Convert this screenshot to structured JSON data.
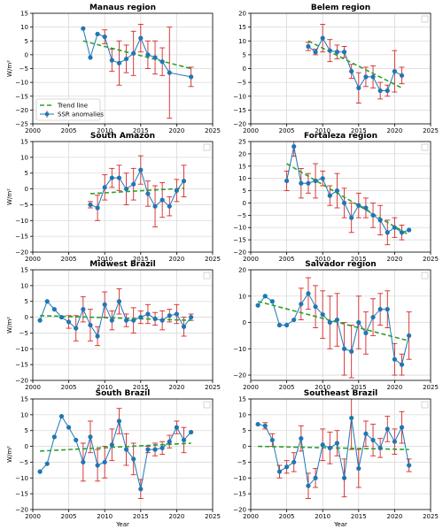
{
  "figure": {
    "series_names": {
      "trend": "Trend line",
      "ssr": "SSR anomalies"
    },
    "colors": {
      "ssr_line": "#1f77b4",
      "error_bar": "#d62728",
      "trend": "#2ca02c",
      "grid": "#d9d9d9",
      "frame": "#000000"
    },
    "xlabel": "Year",
    "ylabel": "W/m²"
  },
  "chart_data": [
    {
      "type": "line",
      "title": "Manaus region",
      "xlim": [
        2000,
        2025
      ],
      "ylim": [
        -25,
        15
      ],
      "xticks": [
        2000,
        2005,
        2010,
        2015,
        2020,
        2025
      ],
      "yticks": [
        -25,
        -20,
        -15,
        -10,
        -5,
        0,
        5,
        10,
        15
      ],
      "xlabel": "",
      "ylabel": "W/m²",
      "legend": "lower-left",
      "series": [
        {
          "name": "SSR anomalies",
          "x": [
            2007,
            2008,
            2009,
            2010,
            2011,
            2012,
            2013,
            2014,
            2015,
            2016,
            2017,
            2018,
            2019,
            2022
          ],
          "y": [
            9.5,
            -1,
            7.5,
            6.5,
            -2,
            -3,
            -1.5,
            0.5,
            6,
            0,
            -1,
            -2.5,
            -6.5,
            -8
          ],
          "err": [
            0,
            0,
            0,
            2.5,
            4,
            8,
            5,
            8,
            5,
            5,
            6,
            5,
            16.5,
            3.5
          ]
        }
      ],
      "trend": {
        "x": [
          2007,
          2022
        ],
        "y": [
          5,
          -5
        ]
      }
    },
    {
      "type": "line",
      "title": "Belem region",
      "xlim": [
        2000,
        2025
      ],
      "ylim": [
        -20,
        20
      ],
      "xticks": [
        2000,
        2005,
        2010,
        2015,
        2020,
        2025
      ],
      "yticks": [
        -20,
        -15,
        -10,
        -5,
        0,
        5,
        10,
        15,
        20
      ],
      "xlabel": "",
      "ylabel": "",
      "legend": "top-right-empty",
      "series": [
        {
          "name": "SSR anomalies",
          "x": [
            2008,
            2009,
            2010,
            2011,
            2012,
            2013,
            2014,
            2015,
            2016,
            2017,
            2018,
            2019,
            2020,
            2021
          ],
          "y": [
            8,
            6,
            11,
            6.5,
            6,
            6,
            -1,
            -7,
            -3,
            -3,
            -8,
            -8,
            -1,
            -2.5
          ],
          "err": [
            1.5,
            1,
            5,
            4,
            2.5,
            2,
            2.5,
            5.5,
            3.5,
            4,
            3,
            2,
            7.5,
            3
          ]
        }
      ],
      "trend": {
        "x": [
          2008,
          2021
        ],
        "y": [
          10,
          -7
        ]
      }
    },
    {
      "type": "line",
      "title": "South Amazon",
      "xlim": [
        2000,
        2025
      ],
      "ylim": [
        -20,
        15
      ],
      "xticks": [
        2000,
        2005,
        2010,
        2015,
        2020,
        2025
      ],
      "yticks": [
        -20,
        -15,
        -10,
        -5,
        0,
        5,
        10,
        15
      ],
      "xlabel": "",
      "ylabel": "W/m²",
      "legend": "top-right-empty",
      "series": [
        {
          "name": "SSR anomalies",
          "x": [
            2008,
            2009,
            2010,
            2011,
            2012,
            2013,
            2014,
            2015,
            2016,
            2017,
            2018,
            2019,
            2020,
            2021
          ],
          "y": [
            -5,
            -6,
            0.5,
            3.5,
            3.5,
            0,
            1.5,
            6,
            -1.5,
            -5.5,
            -3.5,
            -5.5,
            -0.5,
            2.5
          ],
          "err": [
            1,
            4,
            4,
            3,
            4,
            5,
            5,
            4.5,
            4,
            6.5,
            5.5,
            3,
            3.5,
            5
          ]
        }
      ],
      "trend": {
        "x": [
          2008,
          2021
        ],
        "y": [
          -1.5,
          0.2
        ]
      }
    },
    {
      "type": "line",
      "title": "Fortaleza region",
      "xlim": [
        2000,
        2025
      ],
      "ylim": [
        -20,
        25
      ],
      "xticks": [
        2000,
        2005,
        2010,
        2015,
        2020,
        2025
      ],
      "yticks": [
        -20,
        -15,
        -10,
        -5,
        0,
        5,
        10,
        15,
        20,
        25
      ],
      "xlabel": "",
      "ylabel": "",
      "legend": "top-right-empty",
      "series": [
        {
          "name": "SSR anomalies",
          "x": [
            2005,
            2006,
            2007,
            2008,
            2009,
            2010,
            2011,
            2012,
            2013,
            2014,
            2015,
            2016,
            2017,
            2018,
            2019,
            2020,
            2021,
            2022
          ],
          "y": [
            9,
            23,
            8,
            8,
            9,
            10,
            3,
            5,
            0,
            -6,
            -1,
            -2,
            -5,
            -7,
            -12,
            -10,
            -12,
            -11
          ],
          "err": [
            4,
            4,
            6,
            4,
            7,
            3,
            4,
            7,
            6,
            6,
            5,
            4,
            5,
            6,
            5,
            4,
            3,
            0
          ]
        }
      ],
      "trend": {
        "x": [
          2005,
          2022
        ],
        "y": [
          16,
          -13
        ]
      }
    },
    {
      "type": "line",
      "title": "Midwest Brazil",
      "xlim": [
        2000,
        2025
      ],
      "ylim": [
        -20,
        15
      ],
      "xticks": [
        2000,
        2005,
        2010,
        2015,
        2020,
        2025
      ],
      "yticks": [
        -20,
        -15,
        -10,
        -5,
        0,
        5,
        10,
        15
      ],
      "xlabel": "",
      "ylabel": "W/m²",
      "legend": "top-right-empty",
      "series": [
        {
          "name": "SSR anomalies",
          "x": [
            2001,
            2002,
            2003,
            2004,
            2005,
            2006,
            2007,
            2008,
            2009,
            2010,
            2011,
            2012,
            2013,
            2014,
            2015,
            2016,
            2017,
            2018,
            2019,
            2020,
            2021,
            2022
          ],
          "y": [
            -1,
            5,
            2.5,
            0,
            -1.5,
            -3.5,
            2.5,
            -2.5,
            -6,
            4,
            -1,
            5,
            -1,
            -1,
            0,
            1,
            -0.5,
            -1,
            0.5,
            1,
            -3,
            0
          ],
          "err": [
            0,
            0,
            0,
            0,
            2,
            4,
            4,
            5,
            3,
            4,
            3,
            4,
            2,
            4,
            2,
            3,
            2,
            3,
            2,
            3,
            3,
            1
          ]
        }
      ],
      "trend": {
        "x": [
          2001,
          2022
        ],
        "y": [
          0.5,
          -1
        ]
      }
    },
    {
      "type": "line",
      "title": "Salvador region",
      "xlim": [
        2000,
        2025
      ],
      "ylim": [
        -22,
        20
      ],
      "xticks": [
        2000,
        2005,
        2010,
        2015,
        2020,
        2025
      ],
      "yticks": [
        -20,
        -10,
        0,
        10,
        20
      ],
      "xlabel": "",
      "ylabel": "",
      "legend": "top-right-empty",
      "series": [
        {
          "name": "SSR anomalies",
          "x": [
            2001,
            2002,
            2003,
            2004,
            2005,
            2006,
            2007,
            2008,
            2009,
            2010,
            2011,
            2012,
            2013,
            2014,
            2015,
            2016,
            2017,
            2018,
            2019,
            2020,
            2021,
            2022
          ],
          "y": [
            6.5,
            10,
            8,
            -1,
            -1,
            1,
            7,
            11,
            6,
            3,
            0,
            1,
            -10,
            -11,
            0,
            -4,
            2,
            5,
            5,
            -14,
            -16,
            -5
          ],
          "err": [
            0,
            0,
            0,
            0,
            0,
            0,
            6,
            6,
            8,
            9,
            10,
            10,
            10,
            10,
            10,
            8,
            7,
            6,
            7,
            6,
            4,
            9
          ]
        }
      ],
      "trend": {
        "x": [
          2001,
          2022
        ],
        "y": [
          8,
          -7
        ]
      }
    },
    {
      "type": "line",
      "title": "South Brazil",
      "xlim": [
        2000,
        2025
      ],
      "ylim": [
        -20,
        15
      ],
      "xticks": [
        2000,
        2005,
        2010,
        2015,
        2020,
        2025
      ],
      "yticks": [
        -20,
        -15,
        -10,
        -5,
        0,
        5,
        10,
        15
      ],
      "xlabel": "Year",
      "ylabel": "W/m²",
      "legend": "top-right-empty",
      "series": [
        {
          "name": "SSR anomalies",
          "x": [
            2001,
            2002,
            2003,
            2004,
            2005,
            2006,
            2007,
            2008,
            2009,
            2010,
            2011,
            2012,
            2013,
            2014,
            2015,
            2016,
            2017,
            2018,
            2019,
            2020,
            2021,
            2022
          ],
          "y": [
            -8,
            -5.5,
            3,
            9.5,
            6,
            2,
            -5,
            3,
            -6,
            -5,
            0.5,
            8,
            -1,
            -4,
            -13.5,
            -1,
            -1,
            -0.5,
            1.5,
            6,
            2,
            4.5
          ],
          "err": [
            0,
            0,
            0,
            0,
            0,
            0,
            6,
            5,
            5,
            5,
            5,
            4,
            5,
            5,
            3,
            1,
            2,
            2,
            2,
            2,
            4,
            0
          ]
        }
      ],
      "trend": {
        "x": [
          2001,
          2022
        ],
        "y": [
          -1.5,
          1
        ]
      }
    },
    {
      "type": "line",
      "title": "Southeast Brazil",
      "xlim": [
        2000,
        2025
      ],
      "ylim": [
        -20,
        15
      ],
      "xticks": [
        2000,
        2005,
        2010,
        2015,
        2020,
        2025
      ],
      "yticks": [
        -20,
        -15,
        -10,
        -5,
        0,
        5,
        10,
        15
      ],
      "xlabel": "Year",
      "ylabel": "",
      "legend": "top-right-empty",
      "series": [
        {
          "name": "SSR anomalies",
          "x": [
            2001,
            2002,
            2003,
            2004,
            2005,
            2006,
            2007,
            2008,
            2009,
            2010,
            2011,
            2012,
            2013,
            2014,
            2015,
            2016,
            2017,
            2018,
            2019,
            2020,
            2021,
            2022
          ],
          "y": [
            7,
            6.5,
            2,
            -8,
            -6.5,
            -5,
            2.5,
            -12.5,
            -10,
            0.5,
            -0.5,
            1,
            -10,
            9,
            -7,
            4,
            2,
            -0.5,
            5.5,
            1.5,
            6,
            -6
          ],
          "err": [
            0,
            1,
            2,
            2,
            2,
            3,
            4,
            4,
            3,
            5,
            5,
            4,
            6,
            10,
            6,
            4,
            5,
            3,
            4,
            4,
            5,
            2
          ]
        }
      ],
      "trend": {
        "x": [
          2001,
          2022
        ],
        "y": [
          0,
          -1
        ]
      }
    }
  ]
}
